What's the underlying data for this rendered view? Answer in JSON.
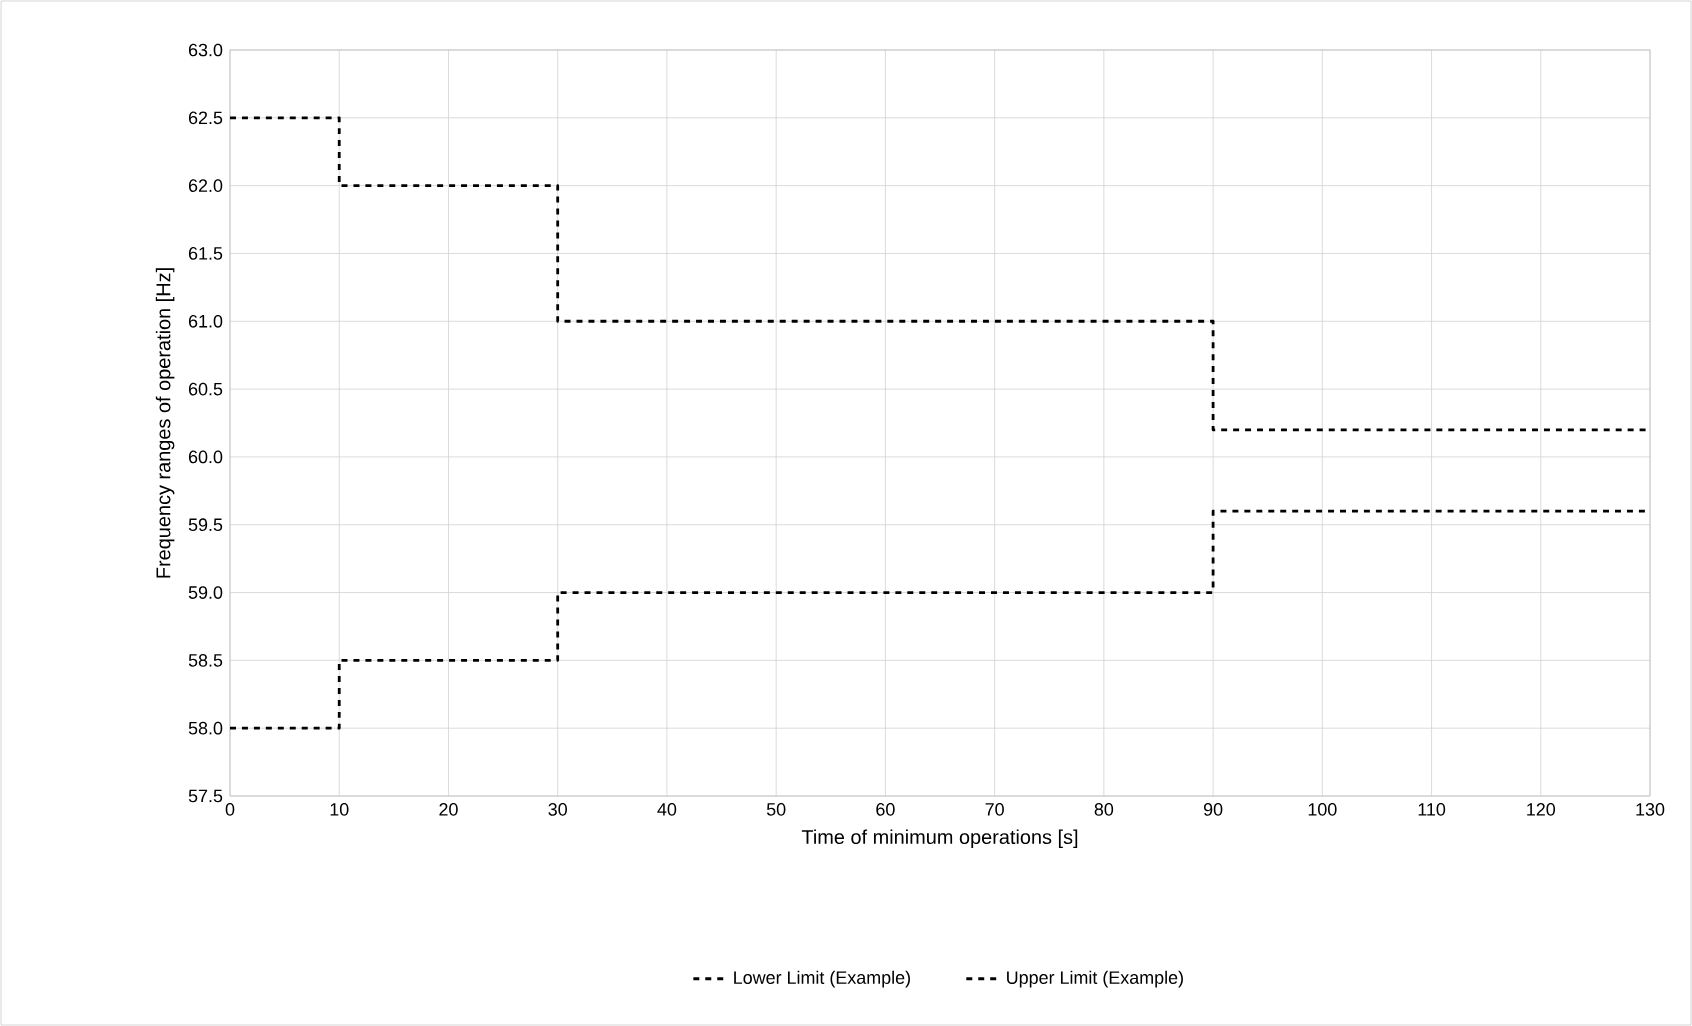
{
  "chart_data": {
    "type": "step",
    "xlabel": "Time of minimum  operations [s]",
    "ylabel": "Frequency ranges of operation [Hz]",
    "x": [
      0,
      10,
      30,
      90,
      130
    ],
    "series": [
      {
        "name": "Lower Limit (Example)",
        "color": "#000000",
        "values": [
          58.0,
          58.5,
          59.0,
          59.6,
          59.6
        ]
      },
      {
        "name": "Upper Limit (Example)",
        "color": "#000000",
        "values": [
          62.5,
          62.0,
          61.0,
          60.2,
          60.2
        ]
      }
    ],
    "xlim": [
      0,
      130
    ],
    "xticks": [
      0,
      10,
      20,
      30,
      40,
      50,
      60,
      70,
      80,
      90,
      100,
      110,
      120,
      130
    ],
    "ylim": [
      57.5,
      63.0
    ],
    "yticks": [
      {
        "value": 57.5,
        "label": "57.5"
      },
      {
        "value": 58,
        "label": "58.0"
      },
      {
        "value": 58.5,
        "label": "58.5"
      },
      {
        "value": 59,
        "label": "59.0"
      },
      {
        "value": 59.5,
        "label": "59.5"
      },
      {
        "value": 60,
        "label": "60.0"
      },
      {
        "value": 60.5,
        "label": "60.5"
      },
      {
        "value": 61,
        "label": "61.0"
      },
      {
        "value": 61.5,
        "label": "61.5"
      },
      {
        "value": 62,
        "label": "62.0"
      },
      {
        "value": 62.5,
        "label": "62.5"
      },
      {
        "value": 63,
        "label": "63.0"
      }
    ],
    "grid": true,
    "legend": "bottom",
    "line_style": "dashed"
  }
}
